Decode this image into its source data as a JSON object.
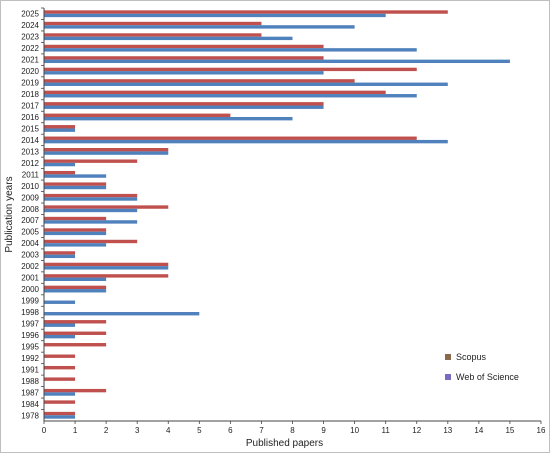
{
  "chart_data": {
    "type": "bar",
    "orientation": "horizontal",
    "title": "",
    "xlabel": "Published papers",
    "ylabel": "Publication years",
    "xlim": [
      0,
      16
    ],
    "xticks": [
      0,
      1,
      2,
      3,
      4,
      5,
      6,
      7,
      8,
      9,
      10,
      11,
      12,
      13,
      14,
      15,
      16
    ],
    "grid": false,
    "legend_position": "bottom-right",
    "categories": [
      "2025",
      "2024",
      "2023",
      "2022",
      "2021",
      "2020",
      "2019",
      "2018",
      "2017",
      "2016",
      "2015",
      "2014",
      "2013",
      "2012",
      "2011",
      "2010",
      "2009",
      "2008",
      "2007",
      "2005",
      "2004",
      "2003",
      "2002",
      "2001",
      "2000",
      "1999",
      "1998",
      "1997",
      "1996",
      "1995",
      "1992",
      "1991",
      "1988",
      "1987",
      "1984",
      "1978"
    ],
    "series": [
      {
        "name": "Scopus",
        "color": "#c0504d",
        "values": [
          13,
          7,
          7,
          9,
          9,
          12,
          10,
          11,
          9,
          6,
          1,
          12,
          4,
          3,
          1,
          2,
          3,
          4,
          2,
          2,
          3,
          1,
          4,
          4,
          2,
          0,
          0,
          2,
          2,
          2,
          1,
          1,
          1,
          2,
          1,
          1
        ]
      },
      {
        "name": "Web of Science",
        "color": "#4f81bd",
        "values": [
          11,
          10,
          8,
          12,
          15,
          9,
          13,
          12,
          9,
          8,
          1,
          13,
          4,
          1,
          2,
          2,
          3,
          3,
          3,
          2,
          2,
          1,
          4,
          2,
          2,
          1,
          5,
          1,
          1,
          0,
          0,
          0,
          0,
          1,
          0,
          1
        ]
      }
    ],
    "legend": [
      {
        "label": "Scopus",
        "swatch_color": "#8a6a4a"
      },
      {
        "label": "Web of Science",
        "swatch_color": "#7a6ac0"
      }
    ]
  }
}
